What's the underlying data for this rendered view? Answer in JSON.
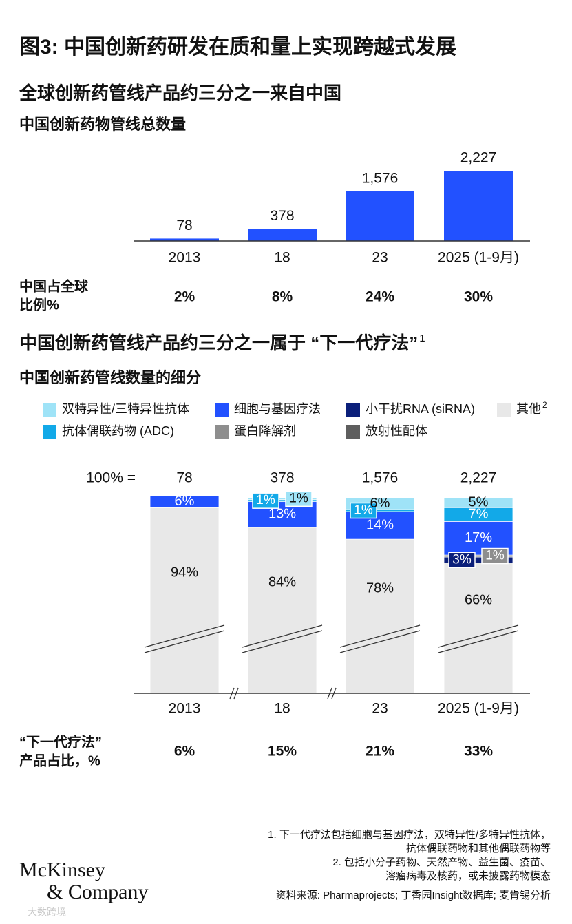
{
  "title": "图3: 中国创新药研发在质和量上实现跨越式发展",
  "chart_data": [
    {
      "type": "bar",
      "title": "全球创新药管线产品约三分之一来自中国",
      "subtitle": "中国创新药物管线总数量",
      "categories": [
        "2013",
        "18",
        "23",
        "2025 (1-9月)"
      ],
      "values": [
        78,
        378,
        1576,
        2227
      ],
      "value_labels": [
        "78",
        "378",
        "1,576",
        "2,227"
      ],
      "color": "#2251ff",
      "row_label": [
        "中国占全球",
        "比例%"
      ],
      "row_values": [
        "2%",
        "8%",
        "24%",
        "30%"
      ]
    },
    {
      "type": "stacked_bar",
      "title": "中国创新药管线产品约三分之一属于 “下一代疗法”",
      "title_note": "1",
      "subtitle": "中国创新药管线数量的细分",
      "categories": [
        "2013",
        "18",
        "23",
        "2025 (1-9月)"
      ],
      "total_prefix": "100% =",
      "totals": [
        78,
        378,
        1576,
        2227
      ],
      "total_labels": [
        "78",
        "378",
        "1,576",
        "2,227"
      ],
      "ylim": [
        0,
        100
      ],
      "series": [
        {
          "name": "双特异性/三特异性抗体",
          "color": "#9fe3f7",
          "values": [
            null,
            1,
            6,
            5
          ],
          "value_labels": [
            null,
            "1%",
            "6%",
            "5%"
          ]
        },
        {
          "name": "抗体偶联药物 (ADC)",
          "color": "#12a9e8",
          "values": [
            null,
            1,
            1,
            7
          ],
          "value_labels": [
            null,
            "1%",
            "1%",
            "7%"
          ]
        },
        {
          "name": "细胞与基因疗法",
          "color": "#2251ff",
          "values": [
            6,
            13,
            14,
            17
          ],
          "value_labels": [
            "6%",
            "13%",
            "14%",
            "17%"
          ]
        },
        {
          "name": "蛋白降解剂",
          "color": "#8e8e8e",
          "values": [
            null,
            null,
            null,
            1
          ],
          "value_labels": [
            null,
            null,
            null,
            "1%"
          ]
        },
        {
          "name": "小干扰RNA (siRNA)",
          "color": "#0b1f7a",
          "values": [
            null,
            null,
            null,
            3
          ],
          "value_labels": [
            null,
            null,
            null,
            "3%"
          ]
        },
        {
          "name": "放射性配体",
          "color": "#5e5e5e",
          "values": [
            null,
            null,
            null,
            null
          ],
          "value_labels": [
            null,
            null,
            null,
            null
          ]
        },
        {
          "name": "其他",
          "name_note": "2",
          "color": "#e8e8e8",
          "values": [
            94,
            84,
            78,
            66
          ],
          "value_labels": [
            "94%",
            "84%",
            "78%",
            "66%"
          ]
        }
      ],
      "row_label": [
        "“下一代疗法”",
        "产品占比，%"
      ],
      "row_values": [
        "6%",
        "15%",
        "21%",
        "33%"
      ]
    }
  ],
  "footnotes": [
    "1.   下一代疗法包括细胞与基因疗法，双特异性/多特异性抗体，",
    "抗体偶联药物和其他偶联药物等",
    "2.   包括小分子药物、天然产物、益生菌、疫苗、",
    "溶瘤病毒及核药，或未披露药物模态"
  ],
  "source": "资料来源: Pharmaprojects; 丁香园Insight数据库; 麦肯锡分析",
  "logo": [
    "McKinsey",
    "& Company"
  ],
  "watermark": "大数跨境"
}
